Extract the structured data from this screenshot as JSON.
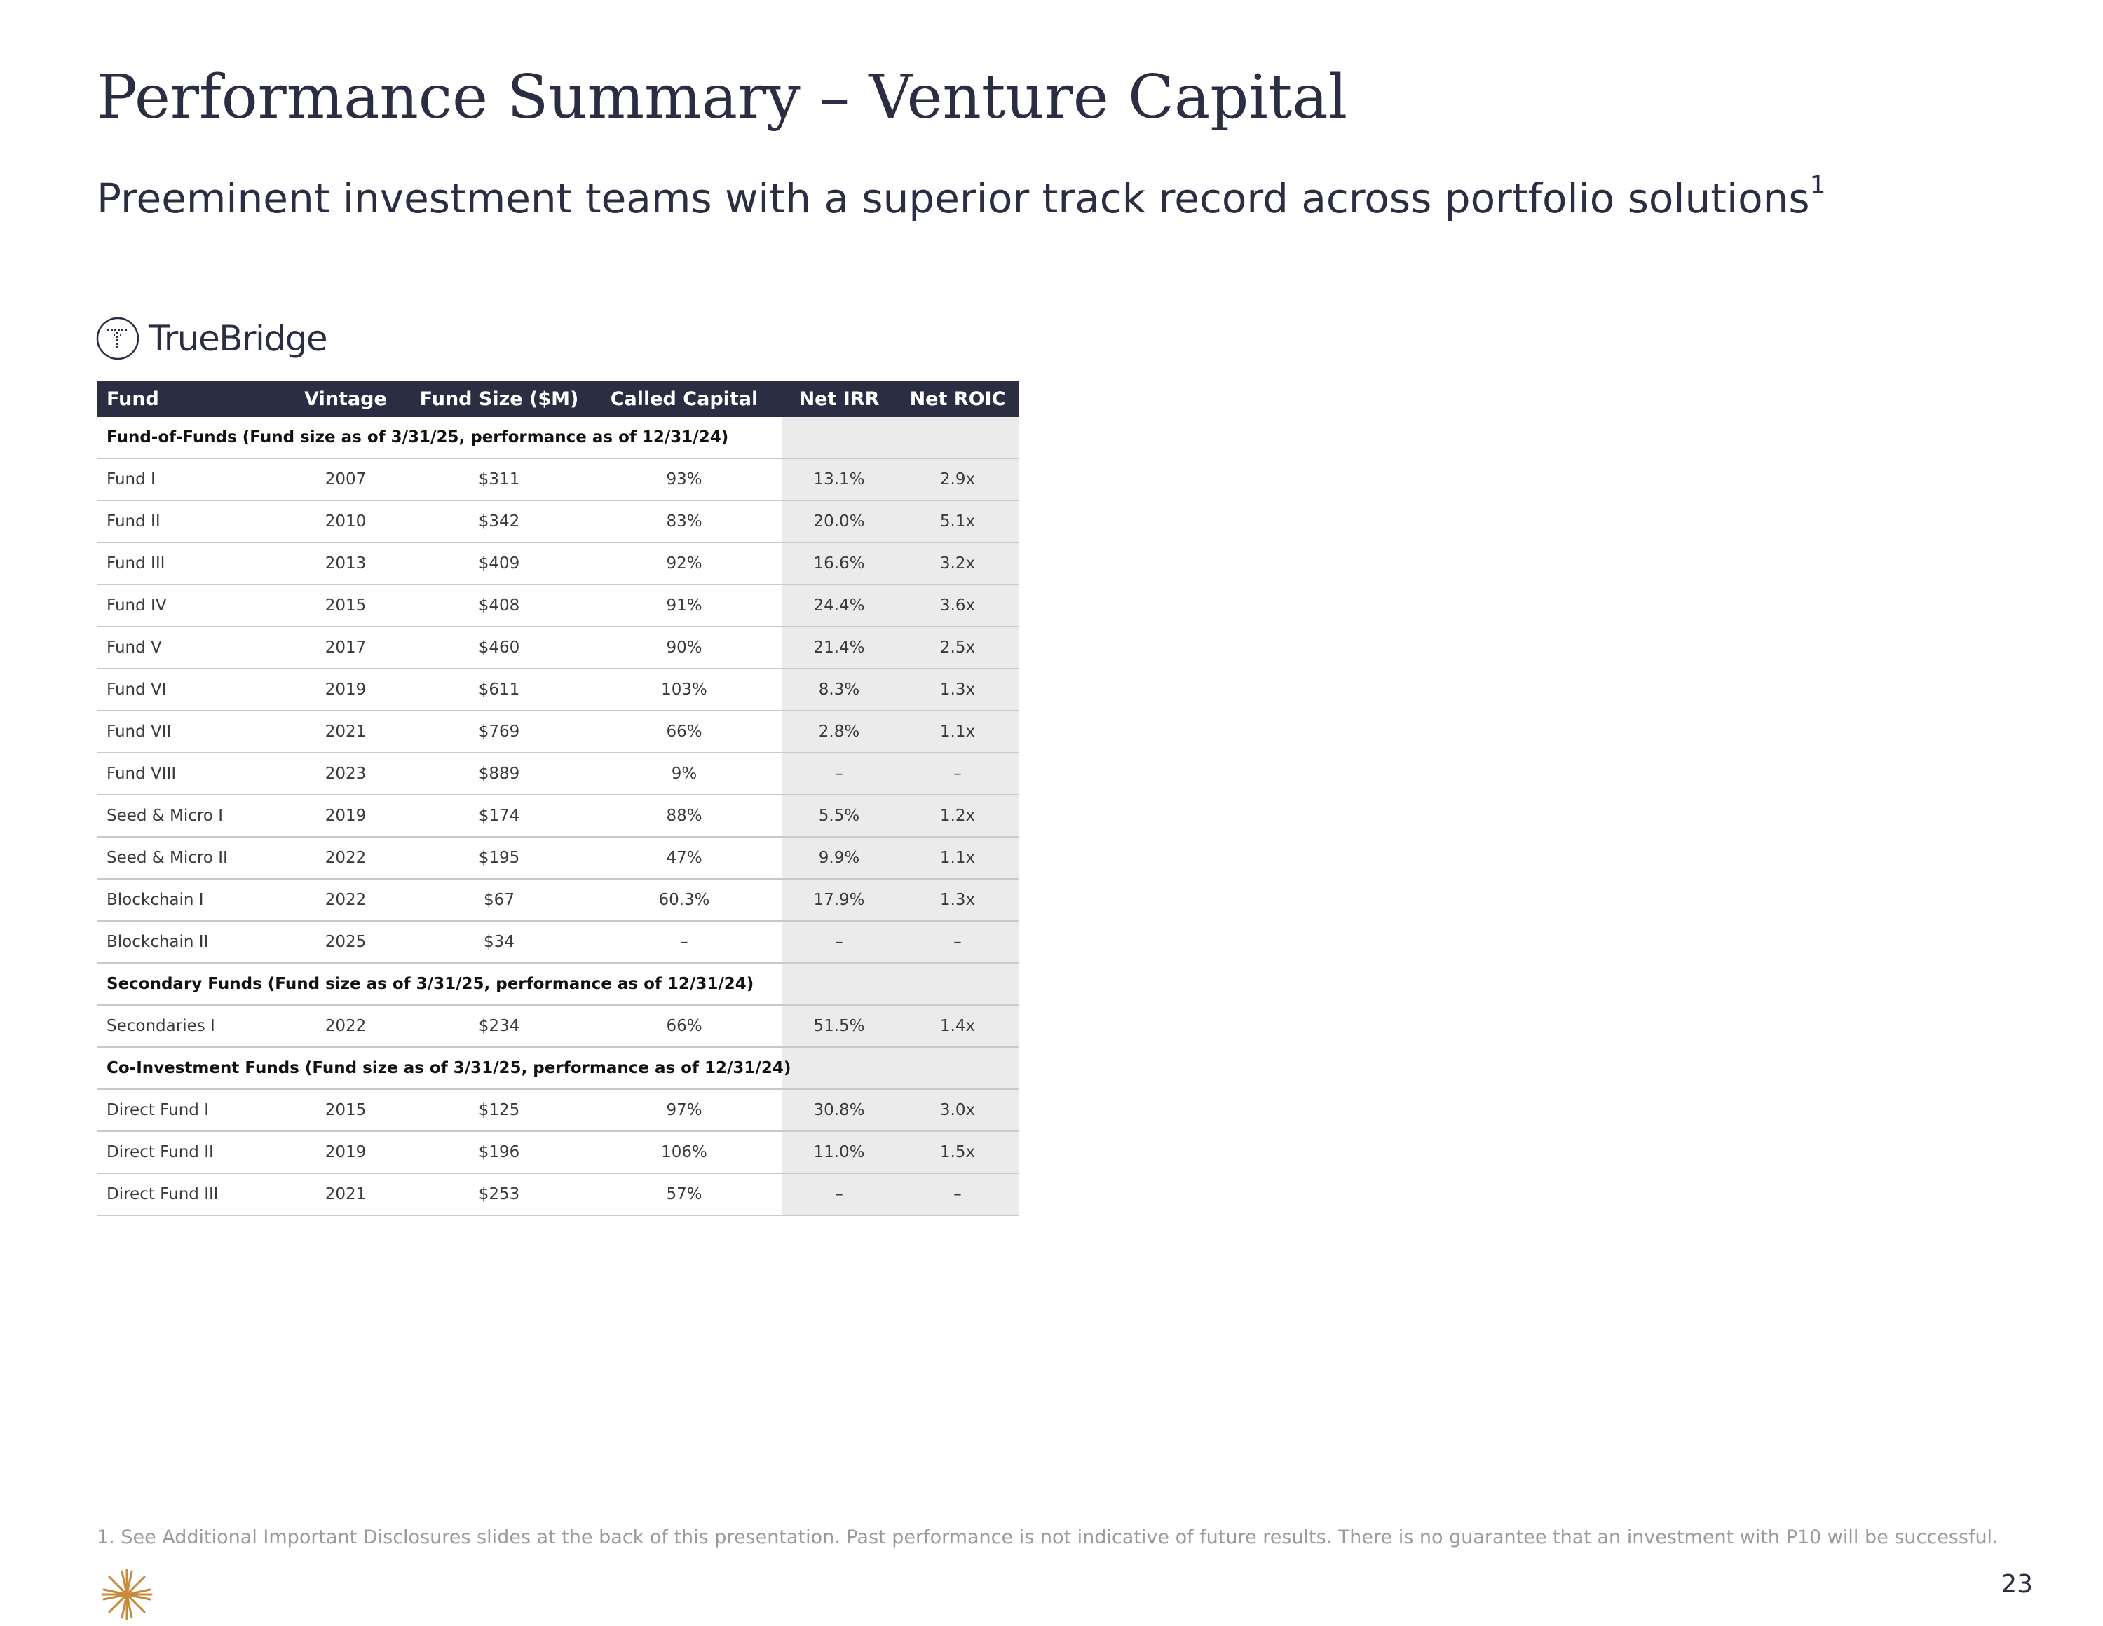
{
  "title": "Performance Summary – Venture Capital",
  "subtitle": {
    "text": "Preeminent investment teams with a superior track record across portfolio solutions",
    "footnote_ref": "1"
  },
  "brand": {
    "name": "TrueBridge",
    "logo_icon": "truebridge-t-icon"
  },
  "table": {
    "headers": [
      "Fund",
      "Vintage",
      "Fund Size ($M)",
      "Called Capital",
      "Net IRR",
      "Net ROIC"
    ],
    "sections": [
      {
        "label": "Fund-of-Funds (Fund size as of 3/31/25, performance as of 12/31/24)",
        "rows": [
          {
            "fund": "Fund I",
            "vintage": "2007",
            "size": "$311",
            "called": "93%",
            "irr": "13.1%",
            "roic": "2.9x"
          },
          {
            "fund": "Fund II",
            "vintage": "2010",
            "size": "$342",
            "called": "83%",
            "irr": "20.0%",
            "roic": "5.1x"
          },
          {
            "fund": "Fund III",
            "vintage": "2013",
            "size": "$409",
            "called": "92%",
            "irr": "16.6%",
            "roic": "3.2x"
          },
          {
            "fund": "Fund IV",
            "vintage": "2015",
            "size": "$408",
            "called": "91%",
            "irr": "24.4%",
            "roic": "3.6x"
          },
          {
            "fund": "Fund V",
            "vintage": "2017",
            "size": "$460",
            "called": "90%",
            "irr": "21.4%",
            "roic": "2.5x"
          },
          {
            "fund": "Fund VI",
            "vintage": "2019",
            "size": "$611",
            "called": "103%",
            "irr": "8.3%",
            "roic": "1.3x"
          },
          {
            "fund": "Fund VII",
            "vintage": "2021",
            "size": "$769",
            "called": "66%",
            "irr": "2.8%",
            "roic": "1.1x"
          },
          {
            "fund": "Fund VIII",
            "vintage": "2023",
            "size": "$889",
            "called": "9%",
            "irr": "–",
            "roic": "–"
          },
          {
            "fund": "Seed & Micro I",
            "vintage": "2019",
            "size": "$174",
            "called": "88%",
            "irr": "5.5%",
            "roic": "1.2x"
          },
          {
            "fund": "Seed & Micro II",
            "vintage": "2022",
            "size": "$195",
            "called": "47%",
            "irr": "9.9%",
            "roic": "1.1x"
          },
          {
            "fund": "Blockchain I",
            "vintage": "2022",
            "size": "$67",
            "called": "60.3%",
            "irr": "17.9%",
            "roic": "1.3x"
          },
          {
            "fund": "Blockchain II",
            "vintage": "2025",
            "size": "$34",
            "called": "–",
            "irr": "–",
            "roic": "–"
          }
        ]
      },
      {
        "label": "Secondary Funds (Fund size as of 3/31/25, performance as of 12/31/24)",
        "rows": [
          {
            "fund": "Secondaries I",
            "vintage": "2022",
            "size": "$234",
            "called": "66%",
            "irr": "51.5%",
            "roic": "1.4x"
          }
        ]
      },
      {
        "label": "Co-Investment Funds (Fund size as of 3/31/25, performance as of 12/31/24)",
        "rows": [
          {
            "fund": "Direct Fund I",
            "vintage": "2015",
            "size": "$125",
            "called": "97%",
            "irr": "30.8%",
            "roic": "3.0x"
          },
          {
            "fund": "Direct Fund II",
            "vintage": "2019",
            "size": "$196",
            "called": "106%",
            "irr": "11.0%",
            "roic": "1.5x"
          },
          {
            "fund": "Direct Fund III",
            "vintage": "2021",
            "size": "$253",
            "called": "57%",
            "irr": "–",
            "roic": "–"
          }
        ]
      }
    ]
  },
  "footnote": "1.  See Additional Important Disclosures slides at the back of this presentation. Past performance is not indicative of future results. There is no guarantee that an investment with P10 will be successful.",
  "footer": {
    "logo_icon": "p10-star-icon",
    "page_number": "23"
  },
  "colors": {
    "header_bg": "#2b2d42",
    "shade": "#ebebeb",
    "accent_gold": "#c9893a",
    "footnote": "#9a9a9a"
  }
}
